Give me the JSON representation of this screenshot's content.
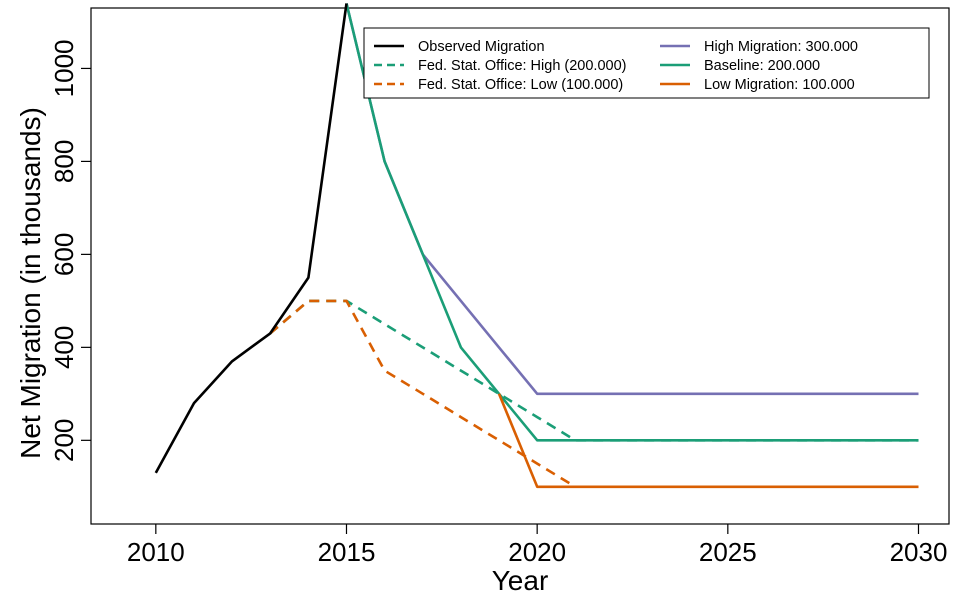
{
  "chart_data": {
    "type": "line",
    "title": "",
    "xlabel": "Year",
    "ylabel": "Net Migration (in thousands)",
    "xlim": [
      2008.3,
      2030.8
    ],
    "ylim": [
      20,
      1130
    ],
    "xticks": [
      2010,
      2015,
      2020,
      2025,
      2030
    ],
    "yticks": [
      200,
      400,
      600,
      800,
      1000
    ],
    "grid": false,
    "legend_position": "top-right",
    "series": [
      {
        "name": "Observed Migration",
        "color": "#000000",
        "dash": "solid",
        "x": [
          2010,
          2011,
          2012,
          2013,
          2014,
          2015
        ],
        "y": [
          130,
          280,
          370,
          430,
          550,
          1140
        ]
      },
      {
        "name": "Fed. Stat. Office: High (200.000)",
        "color": "#1b9e77",
        "dash": "dashed",
        "x": [
          2013,
          2014,
          2015,
          2016,
          2017,
          2018,
          2019,
          2020,
          2021,
          2022,
          2030
        ],
        "y": [
          430,
          500,
          500,
          450,
          400,
          350,
          300,
          250,
          200,
          200,
          200
        ]
      },
      {
        "name": "Fed. Stat. Office: Low (100.000)",
        "color": "#d95f02",
        "dash": "dashed",
        "x": [
          2013,
          2014,
          2015,
          2016,
          2017,
          2018,
          2019,
          2020,
          2021
        ],
        "y": [
          430,
          500,
          500,
          350,
          300,
          250,
          200,
          150,
          100
        ]
      },
      {
        "name": "High Migration: 300.000",
        "color": "#7570b3",
        "dash": "solid",
        "x": [
          2015,
          2016,
          2017,
          2018,
          2019,
          2020,
          2030
        ],
        "y": [
          1140,
          800,
          600,
          500,
          400,
          300,
          300
        ]
      },
      {
        "name": "Baseline: 200.000",
        "color": "#1b9e77",
        "dash": "solid",
        "x": [
          2015,
          2016,
          2017,
          2018,
          2019,
          2020,
          2030
        ],
        "y": [
          1140,
          800,
          600,
          400,
          300,
          200,
          200
        ]
      },
      {
        "name": "Low Migration: 100.000",
        "color": "#d95f02",
        "dash": "solid",
        "x": [
          2019,
          2020,
          2030
        ],
        "y": [
          300,
          100,
          100
        ]
      }
    ],
    "draw_order": [
      1,
      2,
      3,
      4,
      5,
      0
    ],
    "legend_columns": [
      [
        0,
        1,
        2
      ],
      [
        3,
        4,
        5
      ]
    ]
  }
}
